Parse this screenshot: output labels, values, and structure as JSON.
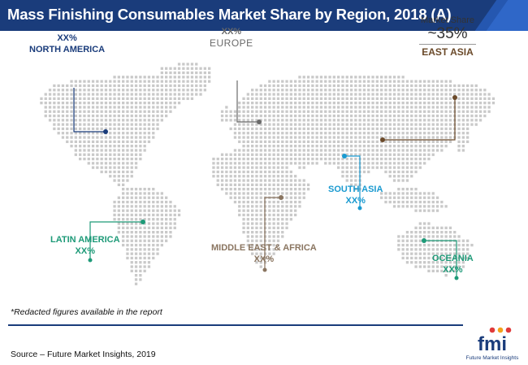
{
  "header": {
    "title": "Mass Finishing Consumables Market Share by Region, 2018 (A)"
  },
  "regions": {
    "north_america": {
      "value": "XX%",
      "label": "NORTH AMERICA",
      "color": "#1a3c7b"
    },
    "europe": {
      "value": "XX%",
      "label": "EUROPE",
      "color": "#6a6a6a"
    },
    "east_asia": {
      "caption": "Market Share",
      "value": "~35%",
      "label": "EAST ASIA",
      "color": "#6b4a2a"
    },
    "south_asia": {
      "label": "SOUTH ASIA",
      "value": "XX%",
      "color": "#1a9ad0"
    },
    "latin_america": {
      "label": "LATIN AMERICA",
      "value": "XX%",
      "color": "#1e9a78"
    },
    "middle_east_africa": {
      "label": "MIDDLE EAST & AFRICA",
      "value": "XX%",
      "color": "#8a7560"
    },
    "oceania": {
      "label": "OCEANIA",
      "value": "XX%",
      "color": "#1e9a78"
    }
  },
  "footer": {
    "note": "*Redacted figures available in the report",
    "source": "Source – Future Market Insights, 2019"
  },
  "logo": {
    "mark": "fmi",
    "tagline": "Future Market Insights"
  }
}
